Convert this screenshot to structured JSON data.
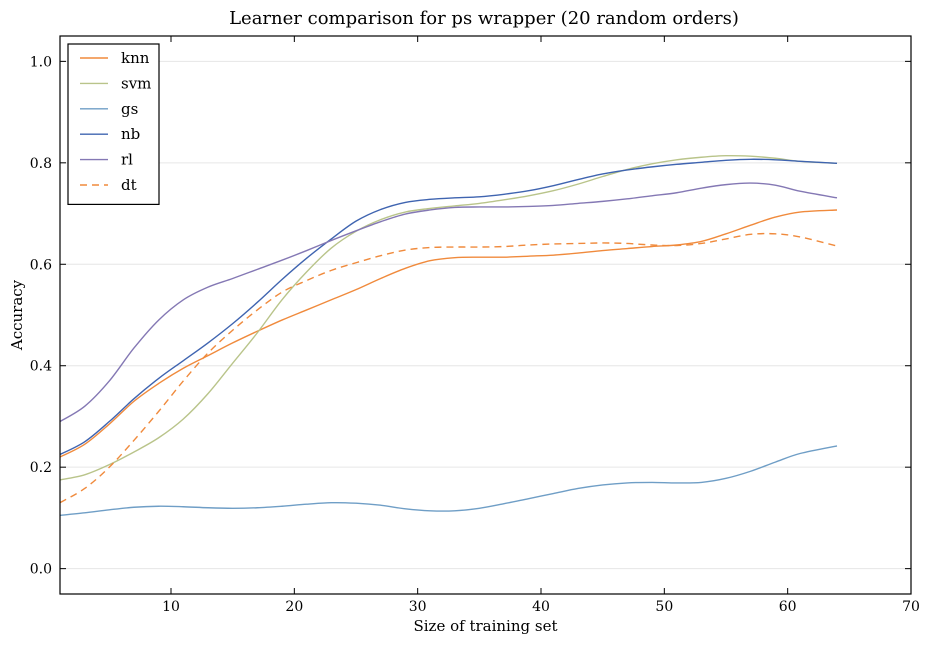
{
  "chart_data": {
    "type": "line",
    "title": "Learner comparison for ps wrapper (20 random orders)",
    "xlabel": "Size of training set",
    "ylabel": "Accuracy",
    "xlim": [
      1,
      70
    ],
    "ylim": [
      -0.05,
      1.05
    ],
    "xticks": [
      10,
      20,
      30,
      40,
      50,
      60,
      70
    ],
    "yticks": [
      0.0,
      0.2,
      0.4,
      0.6,
      0.8,
      1.0
    ],
    "ytick_labels": [
      "0.0",
      "0.2",
      "0.4",
      "0.6",
      "0.8",
      "1.0"
    ],
    "grid": "horizontal",
    "legend": "top-left",
    "series": [
      {
        "name": "knn",
        "color": "#f08a3c",
        "dash": "solid",
        "x": [
          1,
          3,
          5,
          7,
          9,
          11,
          13,
          15,
          17,
          19,
          21,
          23,
          25,
          27,
          29,
          31,
          33,
          35,
          37,
          39,
          41,
          43,
          45,
          47,
          49,
          51,
          53,
          55,
          57,
          59,
          61,
          64
        ],
        "y": [
          0.22,
          0.245,
          0.285,
          0.33,
          0.365,
          0.395,
          0.42,
          0.445,
          0.468,
          0.49,
          0.51,
          0.53,
          0.55,
          0.572,
          0.592,
          0.607,
          0.613,
          0.614,
          0.614,
          0.616,
          0.618,
          0.622,
          0.627,
          0.631,
          0.635,
          0.638,
          0.645,
          0.66,
          0.677,
          0.693,
          0.703,
          0.707
        ]
      },
      {
        "name": "svm",
        "color": "#b9c48a",
        "dash": "solid",
        "x": [
          1,
          3,
          5,
          7,
          9,
          11,
          13,
          15,
          17,
          19,
          21,
          23,
          25,
          27,
          29,
          31,
          33,
          35,
          37,
          39,
          41,
          43,
          45,
          47,
          49,
          51,
          53,
          55,
          57,
          59,
          61,
          64
        ],
        "y": [
          0.175,
          0.185,
          0.205,
          0.23,
          0.258,
          0.295,
          0.345,
          0.405,
          0.465,
          0.53,
          0.585,
          0.632,
          0.665,
          0.688,
          0.703,
          0.71,
          0.715,
          0.72,
          0.727,
          0.735,
          0.745,
          0.758,
          0.773,
          0.787,
          0.798,
          0.806,
          0.811,
          0.814,
          0.813,
          0.809,
          0.803,
          0.799
        ]
      },
      {
        "name": "gs",
        "color": "#6f9ec6",
        "dash": "solid",
        "x": [
          1,
          3,
          5,
          7,
          9,
          11,
          13,
          15,
          17,
          19,
          21,
          23,
          25,
          27,
          29,
          31,
          33,
          35,
          37,
          39,
          41,
          43,
          45,
          47,
          49,
          51,
          53,
          55,
          57,
          59,
          61,
          64
        ],
        "y": [
          0.105,
          0.11,
          0.116,
          0.121,
          0.123,
          0.122,
          0.12,
          0.119,
          0.12,
          0.123,
          0.127,
          0.13,
          0.129,
          0.125,
          0.118,
          0.114,
          0.114,
          0.119,
          0.128,
          0.138,
          0.148,
          0.158,
          0.165,
          0.169,
          0.17,
          0.169,
          0.17,
          0.178,
          0.192,
          0.21,
          0.227,
          0.242
        ]
      },
      {
        "name": "nb",
        "color": "#3f64b0",
        "dash": "solid",
        "x": [
          1,
          3,
          5,
          7,
          9,
          11,
          13,
          15,
          17,
          19,
          21,
          23,
          25,
          27,
          29,
          31,
          33,
          35,
          37,
          39,
          41,
          43,
          45,
          47,
          49,
          51,
          53,
          55,
          57,
          59,
          61,
          64
        ],
        "y": [
          0.225,
          0.25,
          0.29,
          0.335,
          0.375,
          0.41,
          0.445,
          0.483,
          0.525,
          0.57,
          0.612,
          0.65,
          0.685,
          0.708,
          0.722,
          0.728,
          0.731,
          0.733,
          0.738,
          0.745,
          0.755,
          0.767,
          0.778,
          0.786,
          0.792,
          0.797,
          0.801,
          0.805,
          0.807,
          0.806,
          0.803,
          0.799
        ]
      },
      {
        "name": "rl",
        "color": "#8478b4",
        "dash": "solid",
        "x": [
          1,
          3,
          5,
          7,
          9,
          11,
          13,
          15,
          17,
          19,
          21,
          23,
          25,
          27,
          29,
          31,
          33,
          35,
          37,
          39,
          41,
          43,
          45,
          47,
          49,
          51,
          53,
          55,
          57,
          59,
          61,
          64
        ],
        "y": [
          0.29,
          0.32,
          0.37,
          0.435,
          0.49,
          0.53,
          0.555,
          0.572,
          0.59,
          0.608,
          0.627,
          0.647,
          0.666,
          0.684,
          0.699,
          0.707,
          0.712,
          0.713,
          0.713,
          0.714,
          0.716,
          0.72,
          0.724,
          0.729,
          0.735,
          0.741,
          0.75,
          0.757,
          0.76,
          0.756,
          0.744,
          0.731
        ]
      },
      {
        "name": "dt",
        "color": "#f08a3c",
        "dash": "dashed",
        "x": [
          1,
          3,
          5,
          7,
          9,
          11,
          13,
          15,
          17,
          19,
          21,
          23,
          25,
          27,
          29,
          31,
          33,
          35,
          37,
          39,
          41,
          43,
          45,
          47,
          49,
          51,
          53,
          55,
          57,
          59,
          61,
          64
        ],
        "y": [
          0.13,
          0.158,
          0.2,
          0.253,
          0.31,
          0.37,
          0.425,
          0.47,
          0.51,
          0.545,
          0.568,
          0.588,
          0.603,
          0.617,
          0.628,
          0.633,
          0.634,
          0.634,
          0.635,
          0.638,
          0.64,
          0.641,
          0.642,
          0.641,
          0.638,
          0.637,
          0.641,
          0.65,
          0.659,
          0.66,
          0.654,
          0.636
        ]
      }
    ]
  }
}
